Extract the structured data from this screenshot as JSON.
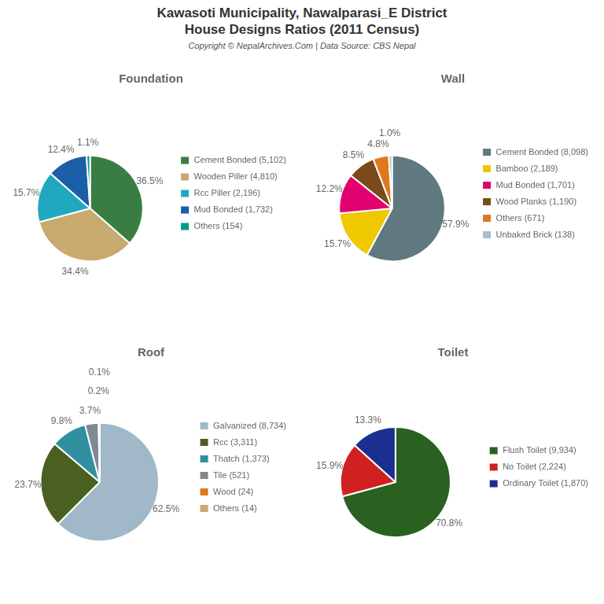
{
  "title": [
    "Kawasoti Municipality, Nawalparasi_E District",
    "House Designs Ratios (2011 Census)"
  ],
  "subtitle": "Copyright © NepalArchives.Com | Data Source: CBS Nepal",
  "chart_data": [
    {
      "type": "pie",
      "title": "Foundation",
      "categories": [
        "Cement Bonded (5,102)",
        "Wooden Piller (4,810)",
        "Rcc Piller (2,196)",
        "Mud Bonded (1,732)",
        "Others (154)"
      ],
      "values": [
        36.5,
        34.4,
        15.7,
        12.4,
        1.1
      ],
      "value_labels": [
        "36.5%",
        "34.4%",
        "15.7%",
        "12.4%",
        "1.1%"
      ],
      "colors": [
        "#3a7d44",
        "#c8a96e",
        "#20a8c0",
        "#1a5fa8",
        "#009988"
      ],
      "data_labels": true,
      "legend": "right"
    },
    {
      "type": "pie",
      "title": "Wall",
      "categories": [
        "Cement Bonded (8,098)",
        "Bamboo (2,189)",
        "Mud Bonded (1,701)",
        "Wood Planks (1,190)",
        "Others (671)",
        "Unbaked Brick (138)"
      ],
      "values": [
        57.9,
        15.7,
        12.2,
        8.5,
        4.8,
        1.0
      ],
      "value_labels": [
        "57.9%",
        "15.7%",
        "12.2%",
        "8.5%",
        "4.8%",
        "1.0%"
      ],
      "colors": [
        "#607880",
        "#f0c800",
        "#e0006e",
        "#7a4a18",
        "#e07820",
        "#a8c0cc"
      ],
      "data_labels": true,
      "legend": "right"
    },
    {
      "type": "pie",
      "title": "Roof",
      "categories": [
        "Galvanized (8,734)",
        "Rcc (3,311)",
        "Thatch (1,373)",
        "Tile (521)",
        "Wood (24)",
        "Others (14)"
      ],
      "values": [
        62.5,
        23.7,
        9.8,
        3.7,
        0.2,
        0.1
      ],
      "value_labels": [
        "62.5%",
        "23.7%",
        "9.8%",
        "3.7%",
        "0.2%",
        "0.1%"
      ],
      "colors": [
        "#a0b8c8",
        "#4a6020",
        "#3090a0",
        "#808890",
        "#e07820",
        "#c8a870"
      ],
      "data_labels": true,
      "legend": "right"
    },
    {
      "type": "pie",
      "title": "Toilet",
      "categories": [
        "Flush Toilet (9,934)",
        "No Toilet (2,224)",
        "Ordinary Toilet (1,870)"
      ],
      "values": [
        70.8,
        15.9,
        13.3
      ],
      "value_labels": [
        "70.8%",
        "15.9%",
        "13.3%"
      ],
      "colors": [
        "#2a6020",
        "#d02020",
        "#1a3090"
      ],
      "data_labels": true,
      "legend": "right"
    }
  ]
}
